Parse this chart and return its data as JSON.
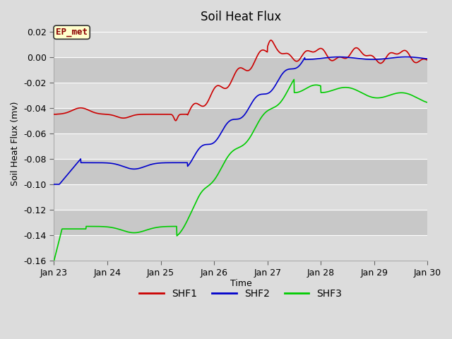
{
  "title": "Soil Heat Flux",
  "xlabel": "Time",
  "ylabel": "Soil Heat Flux (mv)",
  "ylim": [
    -0.16,
    0.024
  ],
  "xlim": [
    0,
    7
  ],
  "xtick_positions": [
    0,
    1,
    2,
    3,
    4,
    5,
    6,
    7
  ],
  "xtick_labels": [
    "Jan 23",
    "Jan 24",
    "Jan 25",
    "Jan 26",
    "Jan 27",
    "Jan 28",
    "Jan 29",
    "Jan 30"
  ],
  "ytick_positions": [
    -0.16,
    -0.14,
    -0.12,
    -0.1,
    -0.08,
    -0.06,
    -0.04,
    -0.02,
    0.0,
    0.02
  ],
  "bg_color": "#dcdcdc",
  "plot_bg_color": "#dcdcdc",
  "band_color1": "#dcdcdc",
  "band_color2": "#c8c8c8",
  "grid_color": "#ffffff",
  "shf1_color": "#cc0000",
  "shf2_color": "#0000cc",
  "shf3_color": "#00cc00",
  "legend_label1": "SHF1",
  "legend_label2": "SHF2",
  "legend_label3": "SHF3",
  "annotation_text": "EP_met",
  "title_fontsize": 12,
  "axis_label_fontsize": 9,
  "tick_fontsize": 9
}
